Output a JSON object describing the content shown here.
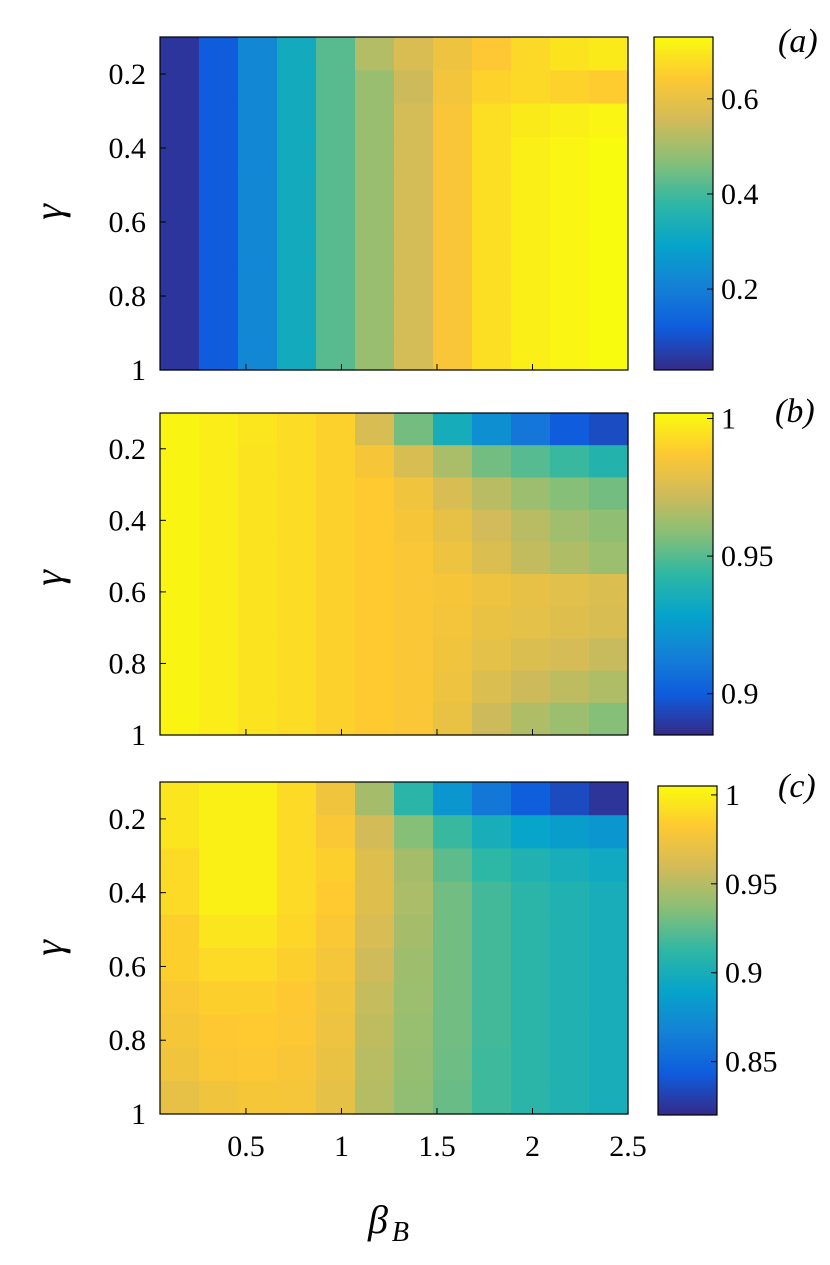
{
  "figure": {
    "ylabel": "γ",
    "xlabel": "β",
    "xlabel_sub": "B"
  },
  "chart_data": [
    {
      "type": "heatmap",
      "panel_label": "(a)",
      "x_range": [
        0.05,
        2.5
      ],
      "y_range": [
        0.1,
        1.0
      ],
      "y_reversed": true,
      "xticks": [
        "0.5",
        "1",
        "1.5",
        "2",
        "2.5"
      ],
      "yticks": [
        "0.2",
        "0.4",
        "0.6",
        "0.8",
        "1"
      ],
      "show_xtick_labels": false,
      "xlabel": "",
      "ylabel": "γ",
      "colorbar": {
        "range": [
          0.03,
          0.73
        ],
        "ticks": [
          "0.2",
          "0.4",
          "0.6"
        ]
      },
      "grid": false,
      "values": [
        [
          0.05,
          0.12,
          0.22,
          0.32,
          0.42,
          0.52,
          0.57,
          0.61,
          0.64,
          0.67,
          0.69,
          0.7
        ],
        [
          0.05,
          0.12,
          0.22,
          0.32,
          0.42,
          0.49,
          0.55,
          0.62,
          0.66,
          0.67,
          0.66,
          0.65
        ],
        [
          0.05,
          0.12,
          0.22,
          0.32,
          0.42,
          0.49,
          0.56,
          0.63,
          0.68,
          0.7,
          0.71,
          0.72
        ],
        [
          0.05,
          0.12,
          0.22,
          0.32,
          0.42,
          0.49,
          0.56,
          0.63,
          0.68,
          0.71,
          0.72,
          0.73
        ],
        [
          0.05,
          0.12,
          0.22,
          0.32,
          0.42,
          0.49,
          0.56,
          0.63,
          0.68,
          0.71,
          0.72,
          0.73
        ],
        [
          0.05,
          0.12,
          0.22,
          0.32,
          0.42,
          0.49,
          0.56,
          0.63,
          0.68,
          0.71,
          0.72,
          0.73
        ],
        [
          0.05,
          0.12,
          0.22,
          0.32,
          0.42,
          0.49,
          0.56,
          0.63,
          0.68,
          0.71,
          0.72,
          0.73
        ],
        [
          0.05,
          0.12,
          0.22,
          0.32,
          0.42,
          0.49,
          0.56,
          0.63,
          0.68,
          0.71,
          0.72,
          0.73
        ],
        [
          0.05,
          0.12,
          0.22,
          0.32,
          0.42,
          0.49,
          0.56,
          0.63,
          0.68,
          0.71,
          0.72,
          0.73
        ],
        [
          0.05,
          0.12,
          0.22,
          0.32,
          0.42,
          0.49,
          0.56,
          0.63,
          0.68,
          0.71,
          0.72,
          0.73
        ]
      ]
    },
    {
      "type": "heatmap",
      "panel_label": "(b)",
      "x_range": [
        0.05,
        2.5
      ],
      "y_range": [
        0.1,
        1.0
      ],
      "y_reversed": true,
      "xticks": [
        "0.5",
        "1",
        "1.5",
        "2",
        "2.5"
      ],
      "yticks": [
        "0.2",
        "0.4",
        "0.6",
        "0.8",
        "1"
      ],
      "show_xtick_labels": false,
      "xlabel": "",
      "ylabel": "γ",
      "colorbar": {
        "range": [
          0.885,
          1.002
        ],
        "ticks": [
          "0.9",
          "0.95",
          "1"
        ]
      },
      "grid": false,
      "values": [
        [
          1.0,
          0.998,
          0.996,
          0.993,
          0.99,
          0.975,
          0.955,
          0.935,
          0.92,
          0.91,
          0.9,
          0.895
        ],
        [
          1.0,
          0.998,
          0.995,
          0.993,
          0.99,
          0.985,
          0.975,
          0.965,
          0.955,
          0.95,
          0.945,
          0.94
        ],
        [
          1.0,
          0.998,
          0.995,
          0.993,
          0.99,
          0.988,
          0.983,
          0.975,
          0.968,
          0.962,
          0.958,
          0.955
        ],
        [
          1.0,
          0.998,
          0.995,
          0.993,
          0.99,
          0.988,
          0.985,
          0.98,
          0.973,
          0.968,
          0.963,
          0.96
        ],
        [
          1.0,
          0.998,
          0.995,
          0.993,
          0.99,
          0.988,
          0.986,
          0.982,
          0.976,
          0.97,
          0.966,
          0.962
        ],
        [
          1.0,
          0.998,
          0.995,
          0.993,
          0.99,
          0.988,
          0.986,
          0.985,
          0.982,
          0.98,
          0.978,
          0.976
        ],
        [
          1.0,
          0.998,
          0.995,
          0.993,
          0.99,
          0.988,
          0.986,
          0.984,
          0.981,
          0.979,
          0.977,
          0.975
        ],
        [
          1.0,
          0.998,
          0.995,
          0.993,
          0.99,
          0.988,
          0.986,
          0.983,
          0.979,
          0.976,
          0.974,
          0.971
        ],
        [
          1.0,
          0.998,
          0.995,
          0.993,
          0.99,
          0.988,
          0.986,
          0.982,
          0.976,
          0.972,
          0.969,
          0.966
        ],
        [
          1.0,
          0.998,
          0.995,
          0.993,
          0.99,
          0.988,
          0.986,
          0.981,
          0.972,
          0.966,
          0.962,
          0.958
        ]
      ]
    },
    {
      "type": "heatmap",
      "panel_label": "(c)",
      "x_range": [
        0.05,
        2.5
      ],
      "y_range": [
        0.1,
        1.0
      ],
      "y_reversed": true,
      "xticks": [
        "0.5",
        "1",
        "1.5",
        "2",
        "2.5"
      ],
      "yticks": [
        "0.2",
        "0.4",
        "0.6",
        "0.8",
        "1"
      ],
      "show_xtick_labels": true,
      "xlabel": "β_B",
      "ylabel": "γ",
      "colorbar": {
        "range": [
          0.82,
          1.005
        ],
        "ticks": [
          "0.85",
          "0.9",
          "0.95",
          "1"
        ]
      },
      "grid": false,
      "values": [
        [
          0.995,
          1.0,
          1.0,
          0.99,
          0.975,
          0.945,
          0.91,
          0.88,
          0.86,
          0.845,
          0.835,
          0.825
        ],
        [
          0.995,
          1.0,
          1.0,
          0.99,
          0.98,
          0.96,
          0.935,
          0.915,
          0.9,
          0.89,
          0.885,
          0.88
        ],
        [
          0.99,
          1.0,
          1.0,
          0.99,
          0.985,
          0.965,
          0.945,
          0.925,
          0.912,
          0.905,
          0.9,
          0.895
        ],
        [
          0.99,
          1.0,
          1.0,
          0.99,
          0.983,
          0.965,
          0.947,
          0.93,
          0.918,
          0.91,
          0.905,
          0.9
        ],
        [
          0.985,
          0.995,
          0.995,
          0.988,
          0.98,
          0.962,
          0.945,
          0.93,
          0.918,
          0.91,
          0.905,
          0.9
        ],
        [
          0.985,
          0.99,
          0.99,
          0.985,
          0.977,
          0.958,
          0.943,
          0.93,
          0.918,
          0.91,
          0.905,
          0.9
        ],
        [
          0.98,
          0.985,
          0.985,
          0.982,
          0.975,
          0.955,
          0.942,
          0.93,
          0.918,
          0.91,
          0.905,
          0.9
        ],
        [
          0.978,
          0.982,
          0.983,
          0.981,
          0.973,
          0.953,
          0.941,
          0.93,
          0.918,
          0.91,
          0.905,
          0.9
        ],
        [
          0.975,
          0.98,
          0.981,
          0.979,
          0.971,
          0.951,
          0.94,
          0.929,
          0.917,
          0.91,
          0.905,
          0.9
        ],
        [
          0.97,
          0.975,
          0.978,
          0.977,
          0.969,
          0.95,
          0.939,
          0.928,
          0.917,
          0.91,
          0.905,
          0.9
        ]
      ]
    }
  ],
  "colors": {
    "parula": [
      "#352a87",
      "#0f5cdd",
      "#1481d6",
      "#06a4ca",
      "#2eb7a4",
      "#87bf77",
      "#d1bb59",
      "#fec832",
      "#f9fb0e"
    ],
    "axis": "#000000",
    "background": "#ffffff"
  }
}
